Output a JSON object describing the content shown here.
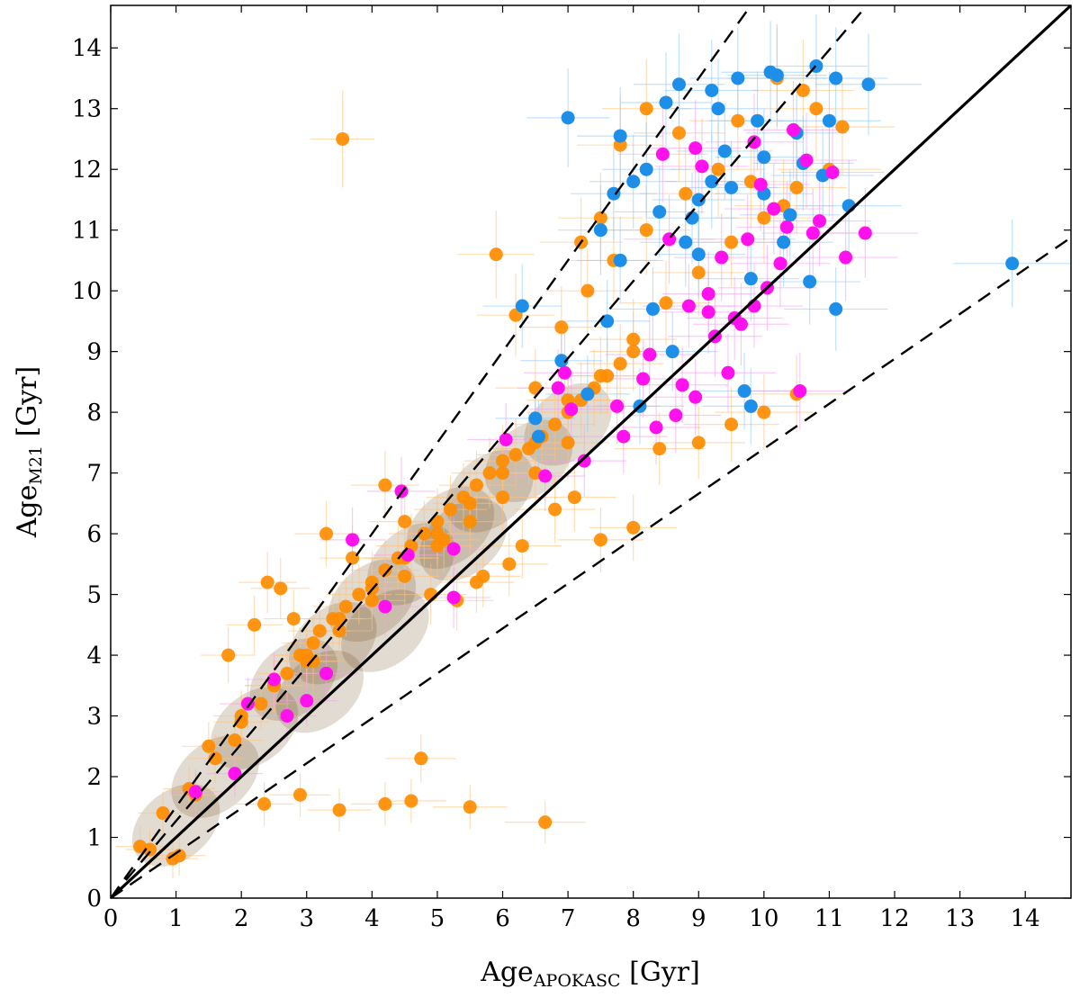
{
  "chart_data": {
    "type": "scatter",
    "title": "",
    "xlabel": "Age",
    "xlabel_sub": "APOKASC",
    "xlabel_unit": " [Gyr]",
    "ylabel": "Age",
    "ylabel_sub": "M21",
    "ylabel_unit": " [Gyr]",
    "xlim": [
      0,
      14.7
    ],
    "ylim": [
      0,
      14.7
    ],
    "xticks": [
      0,
      1,
      2,
      3,
      4,
      5,
      6,
      7,
      8,
      9,
      10,
      11,
      12,
      13,
      14
    ],
    "yticks": [
      0,
      1,
      2,
      3,
      4,
      5,
      6,
      7,
      8,
      9,
      10,
      11,
      12,
      13,
      14
    ],
    "reference_lines": [
      {
        "name": "one-to-one",
        "style": "solid",
        "slope": 1.0
      },
      {
        "name": "upper-bound",
        "style": "dashed",
        "slope": 1.27
      },
      {
        "name": "steep-bound",
        "style": "dashed",
        "slope": 1.5
      },
      {
        "name": "lower-bound",
        "style": "dashed",
        "slope": 0.74
      }
    ],
    "series": [
      {
        "name": "orange",
        "color": "#ff8c00",
        "x": [
          3.55,
          4.75,
          2.35,
          2.9,
          3.5,
          4.2,
          4.6,
          5.5,
          6.65,
          1.05,
          0.95,
          0.45,
          0.6,
          0.8,
          1.3,
          1.2,
          1.6,
          1.9,
          2.0,
          2.3,
          2.5,
          2.7,
          2.9,
          3.1,
          3.2,
          3.4,
          3.6,
          3.8,
          4.0,
          4.2,
          4.4,
          4.6,
          4.8,
          5.0,
          5.2,
          5.4,
          5.6,
          5.8,
          6.0,
          6.2,
          6.4,
          6.6,
          6.8,
          7.0,
          7.2,
          7.4,
          7.6,
          7.8,
          8.0,
          3.0,
          3.5,
          4.0,
          4.5,
          5.0,
          5.5,
          6.0,
          6.5,
          7.0,
          1.5,
          2.0,
          2.5,
          3.0,
          3.5,
          4.0,
          4.5,
          5.0,
          5.5,
          6.0,
          6.5,
          7.0,
          7.5,
          8.0,
          8.5,
          9.0,
          9.5,
          10.0,
          10.5,
          11.0,
          5.9,
          6.2,
          6.5,
          6.9,
          7.3,
          7.7,
          8.2,
          8.8,
          9.6,
          10.8,
          11.2,
          10.6,
          10.2,
          8.2,
          7.8,
          7.5,
          7.2,
          4.2,
          4.5,
          5.1,
          5.6,
          6.1,
          3.3,
          3.7,
          2.4,
          2.8,
          3.1,
          1.8,
          2.2,
          2.6,
          4.9,
          5.3,
          5.7,
          6.3,
          6.8,
          7.1,
          7.5,
          8.0,
          8.4,
          9.0,
          9.5,
          10.0,
          10.5,
          8.7,
          9.3,
          9.8,
          10.3
        ],
        "y": [
          12.5,
          2.3,
          1.55,
          1.7,
          1.45,
          1.55,
          1.6,
          1.5,
          1.25,
          0.7,
          0.65,
          0.85,
          0.8,
          1.4,
          1.7,
          1.8,
          2.3,
          2.6,
          2.9,
          3.2,
          3.5,
          3.7,
          4.0,
          4.2,
          4.4,
          4.6,
          4.8,
          5.0,
          5.2,
          5.4,
          5.6,
          5.8,
          6.0,
          6.2,
          6.4,
          6.6,
          6.8,
          7.0,
          7.2,
          7.3,
          7.4,
          7.6,
          7.8,
          8.0,
          8.2,
          8.4,
          8.6,
          8.8,
          9.0,
          3.9,
          4.4,
          4.9,
          5.3,
          5.8,
          6.2,
          6.6,
          7.0,
          7.5,
          2.5,
          3.0,
          3.5,
          4.0,
          4.6,
          5.1,
          5.6,
          6.0,
          6.5,
          7.0,
          7.5,
          8.2,
          8.6,
          9.2,
          9.8,
          10.3,
          10.8,
          11.2,
          11.7,
          12.0,
          10.6,
          9.6,
          8.4,
          9.4,
          10.0,
          10.5,
          11.0,
          11.6,
          12.8,
          13.0,
          12.7,
          13.3,
          13.5,
          13.0,
          12.4,
          11.2,
          10.8,
          6.8,
          6.2,
          5.9,
          5.2,
          5.5,
          6.0,
          5.6,
          5.2,
          4.6,
          3.9,
          4.0,
          4.5,
          5.1,
          5.0,
          4.9,
          5.3,
          5.8,
          6.4,
          6.6,
          5.9,
          6.1,
          7.4,
          7.5,
          7.8,
          8.0,
          8.3,
          12.6,
          12.0,
          11.8,
          11.4
        ]
      },
      {
        "name": "blue",
        "color": "#1e8fe8",
        "x": [
          13.8,
          7.0,
          7.8,
          8.7,
          9.2,
          9.6,
          10.1,
          10.8,
          11.1,
          11.6,
          10.2,
          9.3,
          8.5,
          8.0,
          7.5,
          7.8,
          8.4,
          9.0,
          9.5,
          10.0,
          10.5,
          11.0,
          10.3,
          9.8,
          9.0,
          8.3,
          7.6,
          6.3,
          6.55,
          6.5,
          6.9,
          7.3,
          8.1,
          8.6,
          9.7,
          9.8,
          10.7,
          11.1,
          10.4,
          9.2,
          8.8,
          9.9,
          10.6,
          11.3,
          9.4,
          8.9,
          10.0,
          10.9,
          8.2,
          7.7
        ],
        "y": [
          10.45,
          12.85,
          12.55,
          13.4,
          13.3,
          13.5,
          13.6,
          13.7,
          13.5,
          13.4,
          13.55,
          13.0,
          13.1,
          11.8,
          11.0,
          10.5,
          11.3,
          11.5,
          11.7,
          12.2,
          12.6,
          12.8,
          10.8,
          10.2,
          10.6,
          9.7,
          9.5,
          9.75,
          7.6,
          7.9,
          8.85,
          8.3,
          8.1,
          9.0,
          8.35,
          8.1,
          10.15,
          9.7,
          11.25,
          11.8,
          10.8,
          12.8,
          12.1,
          11.4,
          12.3,
          11.2,
          11.6,
          11.9,
          12.0,
          11.6
        ]
      },
      {
        "name": "magenta",
        "color": "#ff11ee",
        "x": [
          1.3,
          1.9,
          2.1,
          2.5,
          2.7,
          3.0,
          3.3,
          3.7,
          4.2,
          4.45,
          4.55,
          5.25,
          5.25,
          6.65,
          6.05,
          7.25,
          7.05,
          6.85,
          6.95,
          7.75,
          7.85,
          8.35,
          8.15,
          8.65,
          8.25,
          8.85,
          9.15,
          9.55,
          9.85,
          10.05,
          10.55,
          9.45,
          8.95,
          8.75,
          9.25,
          9.65,
          10.25,
          10.75,
          11.25,
          10.85,
          10.35,
          9.75,
          9.35,
          8.55,
          11.55,
          10.15,
          9.05,
          8.45,
          9.85,
          10.65,
          11.05,
          8.95,
          9.95,
          10.45,
          9.15
        ],
        "y": [
          1.75,
          2.05,
          3.2,
          3.6,
          3.0,
          3.25,
          3.7,
          5.9,
          4.8,
          6.7,
          5.65,
          5.75,
          4.95,
          6.95,
          7.55,
          7.2,
          8.05,
          8.4,
          8.65,
          8.1,
          7.6,
          7.75,
          8.55,
          7.95,
          8.95,
          9.75,
          9.95,
          9.55,
          9.75,
          10.05,
          8.35,
          8.65,
          8.25,
          8.45,
          9.25,
          9.45,
          10.45,
          10.95,
          10.55,
          11.15,
          11.05,
          10.85,
          10.55,
          10.85,
          10.95,
          11.35,
          12.05,
          12.25,
          12.45,
          12.15,
          11.95,
          12.35,
          11.75,
          12.65,
          9.65
        ]
      }
    ]
  }
}
